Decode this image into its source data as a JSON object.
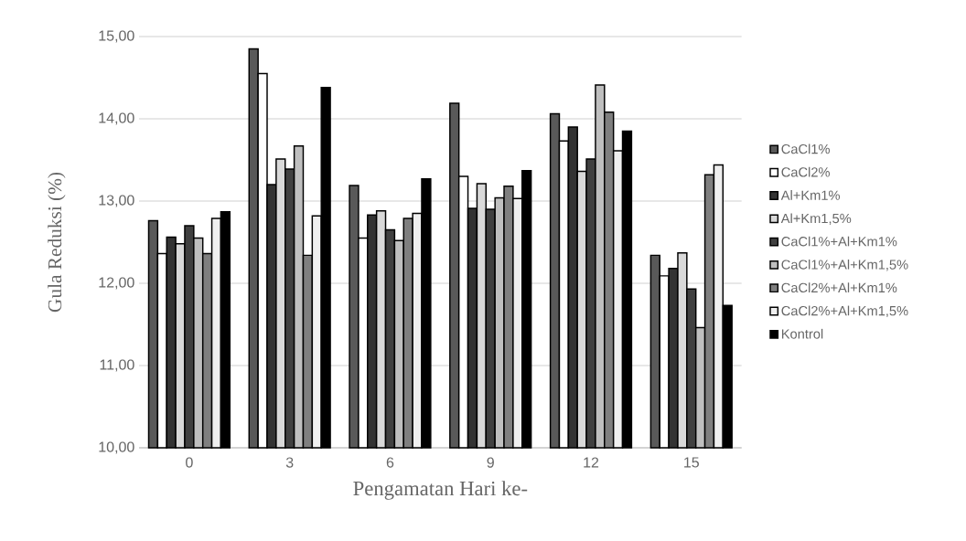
{
  "chart_data": {
    "type": "bar",
    "xlabel": "Pengamatan Hari ke-",
    "ylabel": "Gula Reduksi (%)",
    "categories": [
      "0",
      "3",
      "6",
      "9",
      "12",
      "15"
    ],
    "ylim": [
      10,
      15
    ],
    "yticks": [
      {
        "value": 10,
        "label": "10,00"
      },
      {
        "value": 11,
        "label": "11,00"
      },
      {
        "value": 12,
        "label": "12,00"
      },
      {
        "value": 13,
        "label": "13,00"
      },
      {
        "value": 14,
        "label": "14,00"
      },
      {
        "value": 15,
        "label": "15,00"
      }
    ],
    "grid": "y",
    "legend": "right",
    "series": [
      {
        "name": "CaCl1%",
        "color": "#595959",
        "values": [
          12.76,
          14.85,
          13.19,
          14.19,
          14.06,
          12.34
        ]
      },
      {
        "name": "CaCl2%",
        "color": "#ffffff",
        "values": [
          12.36,
          14.55,
          12.55,
          13.3,
          13.73,
          12.09
        ]
      },
      {
        "name": "Al+Km1%",
        "color": "#333333",
        "values": [
          12.56,
          13.2,
          12.83,
          12.91,
          13.9,
          12.18
        ]
      },
      {
        "name": "Al+Km1,5%",
        "color": "#d9d9d9",
        "values": [
          12.48,
          13.51,
          12.88,
          13.21,
          13.36,
          12.37
        ]
      },
      {
        "name": "CaCl1%+Al+Km1%",
        "color": "#404040",
        "values": [
          12.7,
          13.39,
          12.65,
          12.9,
          13.51,
          11.93
        ]
      },
      {
        "name": "CaCl1%+Al+Km1,5%",
        "color": "#bfbfbf",
        "values": [
          12.55,
          13.67,
          12.52,
          13.04,
          14.41,
          11.46
        ]
      },
      {
        "name": "CaCl2%+Al+Km1%",
        "color": "#7f7f7f",
        "values": [
          12.36,
          12.34,
          12.79,
          13.18,
          14.08,
          13.32
        ]
      },
      {
        "name": "CaCl2%+Al+Km1,5%",
        "color": "#efefef",
        "values": [
          12.79,
          12.82,
          12.85,
          13.03,
          13.61,
          13.44
        ]
      },
      {
        "name": "Kontrol",
        "color": "#000000",
        "values": [
          12.87,
          14.38,
          13.27,
          13.37,
          13.85,
          11.73
        ]
      }
    ]
  }
}
